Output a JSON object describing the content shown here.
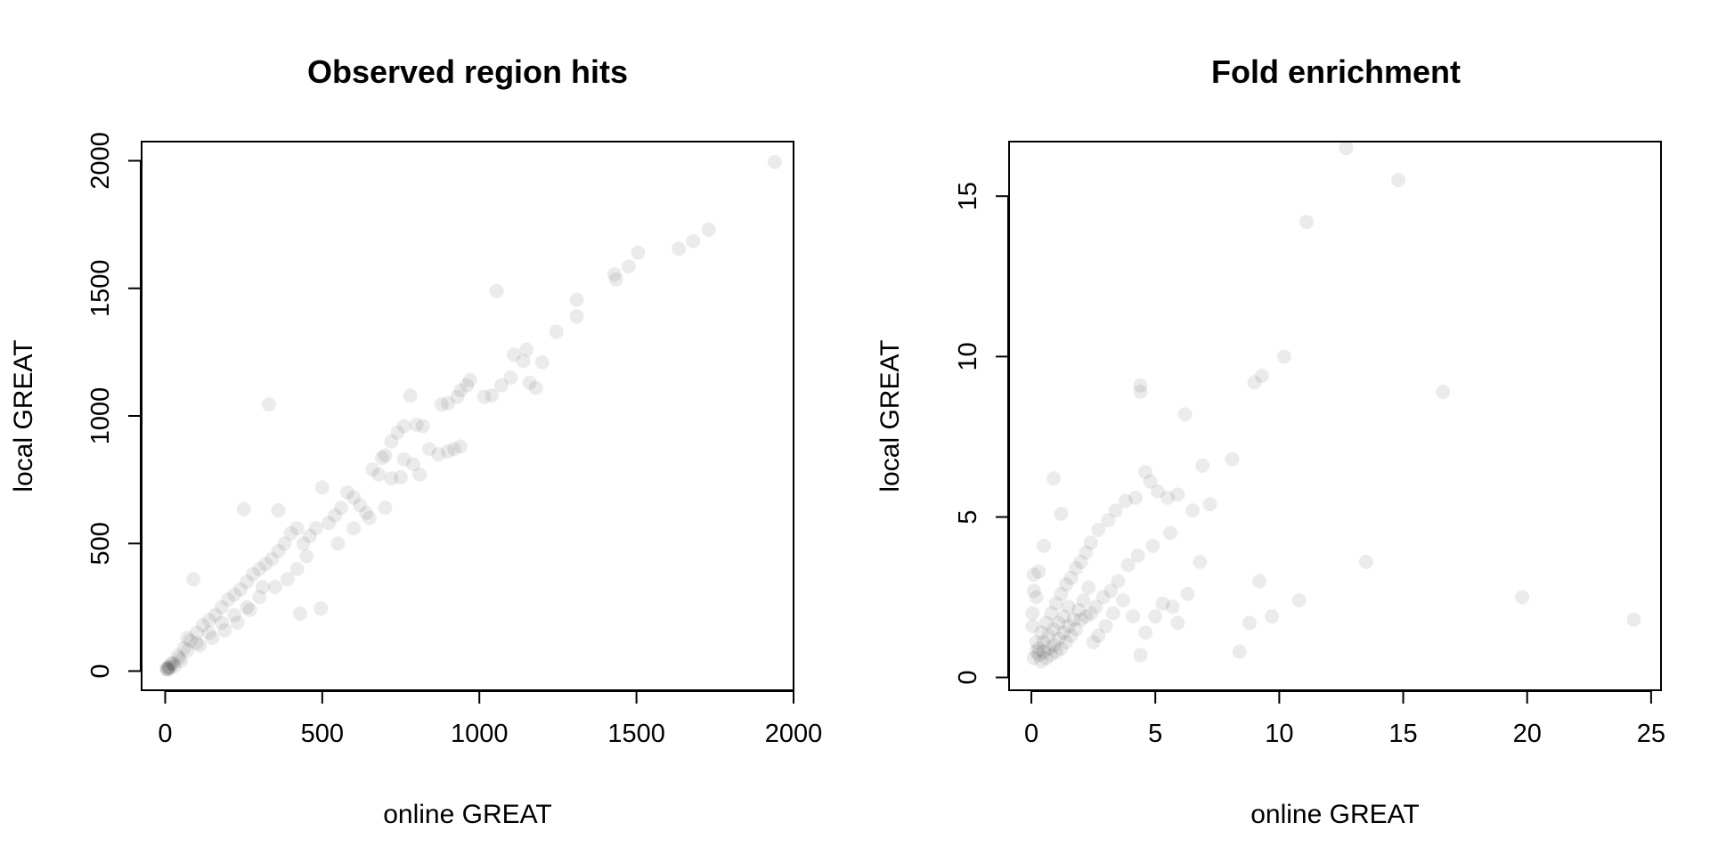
{
  "chart_data": [
    {
      "type": "scatter",
      "title": "Observed region hits",
      "xlabel": "online GREAT",
      "ylabel": "local GREAT",
      "xlim": [
        -75,
        2000
      ],
      "ylim": [
        -75,
        2075
      ],
      "xticks": [
        0,
        500,
        1000,
        1500,
        2000
      ],
      "yticks": [
        0,
        500,
        1000,
        1500,
        2000
      ],
      "grid": false,
      "point_color": "#000000",
      "point_alpha": 0.08,
      "series": [
        {
          "points": [
            [
              1940,
              1995
            ],
            [
              1730,
              1730
            ],
            [
              1680,
              1685
            ],
            [
              1635,
              1655
            ],
            [
              1505,
              1640
            ],
            [
              1475,
              1585
            ],
            [
              1430,
              1555
            ],
            [
              1435,
              1535
            ],
            [
              1310,
              1455
            ],
            [
              1310,
              1390
            ],
            [
              1245,
              1330
            ],
            [
              1055,
              1490
            ],
            [
              1150,
              1260
            ],
            [
              1110,
              1240
            ],
            [
              1200,
              1210
            ],
            [
              1140,
              1215
            ],
            [
              1180,
              1110
            ],
            [
              1160,
              1130
            ],
            [
              1100,
              1150
            ],
            [
              1070,
              1120
            ],
            [
              1040,
              1080
            ],
            [
              1015,
              1075
            ],
            [
              970,
              1140
            ],
            [
              960,
              1120
            ],
            [
              940,
              1100
            ],
            [
              930,
              1075
            ],
            [
              900,
              1050
            ],
            [
              880,
              1045
            ],
            [
              940,
              880
            ],
            [
              920,
              870
            ],
            [
              900,
              860
            ],
            [
              870,
              850
            ],
            [
              780,
              1080
            ],
            [
              760,
              960
            ],
            [
              740,
              935
            ],
            [
              720,
              900
            ],
            [
              700,
              845
            ],
            [
              690,
              835
            ],
            [
              660,
              790
            ],
            [
              680,
              770
            ],
            [
              720,
              755
            ],
            [
              750,
              760
            ],
            [
              760,
              830
            ],
            [
              800,
              965
            ],
            [
              820,
              960
            ],
            [
              840,
              870
            ],
            [
              810,
              770
            ],
            [
              790,
              810
            ],
            [
              600,
              680
            ],
            [
              620,
              650
            ],
            [
              640,
              620
            ],
            [
              580,
              700
            ],
            [
              560,
              640
            ],
            [
              540,
              610
            ],
            [
              520,
              580
            ],
            [
              500,
              720
            ],
            [
              480,
              560
            ],
            [
              460,
              530
            ],
            [
              440,
              500
            ],
            [
              420,
              560
            ],
            [
              400,
              540
            ],
            [
              380,
              500
            ],
            [
              360,
              470
            ],
            [
              340,
              440
            ],
            [
              320,
              420
            ],
            [
              300,
              400
            ],
            [
              280,
              380
            ],
            [
              260,
              350
            ],
            [
              240,
              320
            ],
            [
              220,
              300
            ],
            [
              200,
              280
            ],
            [
              180,
              250
            ],
            [
              160,
              220
            ],
            [
              140,
              200
            ],
            [
              120,
              180
            ],
            [
              100,
              150
            ],
            [
              80,
              120
            ],
            [
              60,
              90
            ],
            [
              40,
              60
            ],
            [
              20,
              30
            ],
            [
              10,
              15
            ],
            [
              5,
              8
            ],
            [
              330,
              1045
            ],
            [
              250,
              635
            ],
            [
              430,
              225
            ],
            [
              495,
              245
            ],
            [
              360,
              630
            ],
            [
              310,
              330
            ],
            [
              270,
              240
            ],
            [
              230,
              190
            ],
            [
              190,
              160
            ],
            [
              150,
              130
            ],
            [
              110,
              100
            ],
            [
              90,
              360
            ],
            [
              70,
              130
            ],
            [
              50,
              40
            ],
            [
              30,
              20
            ],
            [
              15,
              10
            ],
            [
              8,
              5
            ],
            [
              600,
              560
            ],
            [
              650,
              600
            ],
            [
              700,
              640
            ],
            [
              550,
              500
            ],
            [
              450,
              450
            ],
            [
              420,
              400
            ],
            [
              390,
              360
            ],
            [
              350,
              330
            ],
            [
              300,
              290
            ],
            [
              260,
              250
            ],
            [
              220,
              220
            ],
            [
              180,
              190
            ],
            [
              140,
              150
            ],
            [
              100,
              110
            ],
            [
              70,
              80
            ],
            [
              45,
              50
            ],
            [
              25,
              30
            ],
            [
              12,
              18
            ],
            [
              6,
              10
            ]
          ]
        }
      ]
    },
    {
      "type": "scatter",
      "title": "Fold enrichment",
      "xlabel": "online GREAT",
      "ylabel": "local GREAT",
      "xlim": [
        -0.9,
        25.4
      ],
      "ylim": [
        -0.4,
        16.7
      ],
      "xticks": [
        0,
        5,
        10,
        15,
        20,
        25
      ],
      "yticks": [
        0,
        5,
        10,
        15
      ],
      "grid": false,
      "point_color": "#000000",
      "point_alpha": 0.08,
      "series": [
        {
          "points": [
            [
              12.7,
              16.5
            ],
            [
              14.8,
              15.5
            ],
            [
              11.1,
              14.2
            ],
            [
              10.2,
              10.0
            ],
            [
              9.3,
              9.4
            ],
            [
              9.0,
              9.2
            ],
            [
              16.6,
              8.9
            ],
            [
              4.4,
              9.1
            ],
            [
              4.4,
              8.9
            ],
            [
              6.2,
              8.2
            ],
            [
              8.1,
              6.8
            ],
            [
              6.9,
              6.6
            ],
            [
              6.5,
              5.2
            ],
            [
              5.9,
              5.7
            ],
            [
              5.5,
              5.6
            ],
            [
              5.1,
              5.8
            ],
            [
              4.8,
              6.1
            ],
            [
              4.6,
              6.4
            ],
            [
              4.2,
              5.6
            ],
            [
              3.8,
              5.5
            ],
            [
              3.4,
              5.2
            ],
            [
              3.1,
              4.9
            ],
            [
              2.7,
              4.6
            ],
            [
              2.4,
              4.2
            ],
            [
              2.2,
              3.9
            ],
            [
              2.0,
              3.6
            ],
            [
              1.8,
              3.4
            ],
            [
              1.6,
              3.1
            ],
            [
              1.4,
              2.9
            ],
            [
              1.2,
              2.6
            ],
            [
              1.0,
              2.3
            ],
            [
              0.8,
              2.0
            ],
            [
              0.6,
              1.7
            ],
            [
              0.4,
              1.4
            ],
            [
              0.2,
              1.1
            ],
            [
              0.9,
              6.2
            ],
            [
              1.2,
              5.1
            ],
            [
              0.5,
              4.1
            ],
            [
              0.1,
              3.2
            ],
            [
              0.2,
              2.5
            ],
            [
              13.5,
              3.6
            ],
            [
              19.8,
              2.5
            ],
            [
              24.3,
              1.8
            ],
            [
              9.2,
              3.0
            ],
            [
              10.8,
              2.4
            ],
            [
              9.7,
              1.9
            ],
            [
              8.8,
              1.7
            ],
            [
              8.4,
              0.8
            ],
            [
              6.3,
              2.6
            ],
            [
              5.9,
              1.7
            ],
            [
              5.7,
              2.2
            ],
            [
              5.3,
              2.3
            ],
            [
              5.0,
              1.9
            ],
            [
              4.6,
              1.4
            ],
            [
              4.4,
              0.7
            ],
            [
              4.1,
              1.9
            ],
            [
              3.7,
              2.4
            ],
            [
              3.3,
              2.0
            ],
            [
              3.0,
              1.6
            ],
            [
              2.7,
              1.3
            ],
            [
              2.5,
              1.1
            ],
            [
              2.3,
              2.8
            ],
            [
              2.1,
              2.4
            ],
            [
              1.9,
              2.1
            ],
            [
              1.7,
              1.8
            ],
            [
              1.5,
              1.6
            ],
            [
              1.3,
              1.4
            ],
            [
              1.1,
              1.2
            ],
            [
              0.9,
              1.0
            ],
            [
              0.7,
              0.9
            ],
            [
              0.5,
              0.8
            ],
            [
              0.3,
              0.7
            ],
            [
              0.1,
              0.6
            ],
            [
              2.0,
              1.8
            ],
            [
              1.8,
              1.5
            ],
            [
              1.6,
              1.3
            ],
            [
              1.4,
              1.1
            ],
            [
              1.2,
              0.9
            ],
            [
              1.0,
              0.8
            ],
            [
              0.8,
              0.7
            ],
            [
              0.6,
              0.6
            ],
            [
              0.4,
              0.5
            ],
            [
              3.5,
              3.0
            ],
            [
              3.2,
              2.7
            ],
            [
              2.9,
              2.5
            ],
            [
              2.6,
              2.2
            ],
            [
              2.4,
              2.0
            ],
            [
              2.2,
              1.9
            ],
            [
              6.8,
              3.6
            ],
            [
              7.2,
              5.4
            ],
            [
              5.6,
              4.5
            ],
            [
              4.9,
              4.1
            ],
            [
              4.3,
              3.8
            ],
            [
              3.9,
              3.5
            ],
            [
              1.5,
              2.2
            ],
            [
              1.3,
              1.9
            ],
            [
              1.1,
              1.7
            ],
            [
              0.9,
              1.5
            ],
            [
              0.7,
              1.3
            ],
            [
              0.5,
              1.1
            ],
            [
              0.3,
              0.9
            ],
            [
              0.2,
              0.8
            ],
            [
              0.05,
              1.6
            ],
            [
              0.05,
              2.0
            ],
            [
              0.1,
              2.7
            ],
            [
              0.3,
              3.3
            ]
          ]
        }
      ]
    }
  ]
}
